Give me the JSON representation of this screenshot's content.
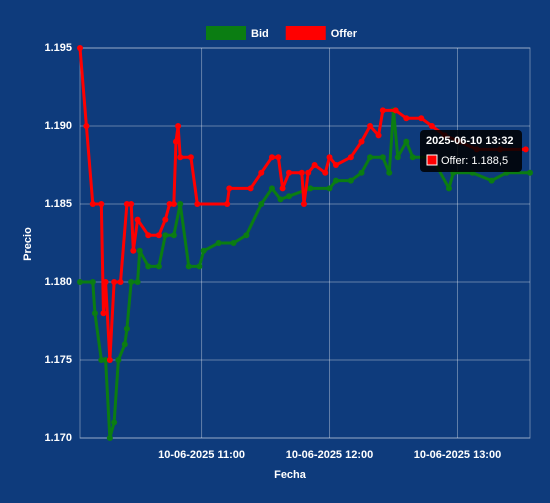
{
  "chart_data": {
    "type": "line",
    "x_label": "Fecha",
    "y_label": "Precio",
    "xlim": [
      "2025-06-10 10:03",
      "2025-06-10 13:34"
    ],
    "xticks": [
      {
        "value": "2025-06-10 11:00",
        "label": "10-06-2025 11:00"
      },
      {
        "value": "2025-06-10 12:00",
        "label": "10-06-2025 12:00"
      },
      {
        "value": "2025-06-10 13:00",
        "label": "10-06-2025 13:00"
      }
    ],
    "ylim": [
      1.17,
      1.195
    ],
    "yticks": [
      {
        "value": 1.17,
        "label": "1.170"
      },
      1.175,
      {
        "value": 1.18,
        "label": "1.180"
      },
      1.185,
      {
        "value": 1.19,
        "label": "1.190"
      },
      1.195
    ],
    "grid": true,
    "legend": "top",
    "series": [
      {
        "name": "Bid",
        "color": "#0b7d12",
        "x": [
          "2025-06-10 10:03",
          "2025-06-10 10:09",
          "2025-06-10 10:10",
          "2025-06-10 10:13",
          "2025-06-10 10:15",
          "2025-06-10 10:17",
          "2025-06-10 10:19",
          "2025-06-10 10:21",
          "2025-06-10 10:24",
          "2025-06-10 10:25",
          "2025-06-10 10:27",
          "2025-06-10 10:30",
          "2025-06-10 10:31",
          "2025-06-10 10:35",
          "2025-06-10 10:40",
          "2025-06-10 10:43",
          "2025-06-10 10:47",
          "2025-06-10 10:50",
          "2025-06-10 10:54",
          "2025-06-10 10:59",
          "2025-06-10 11:01",
          "2025-06-10 11:08",
          "2025-06-10 11:15",
          "2025-06-10 11:21",
          "2025-06-10 11:28",
          "2025-06-10 11:33",
          "2025-06-10 11:37",
          "2025-06-10 11:41",
          "2025-06-10 11:51",
          "2025-06-10 12:00",
          "2025-06-10 12:03",
          "2025-06-10 12:10",
          "2025-06-10 12:15",
          "2025-06-10 12:19",
          "2025-06-10 12:25",
          "2025-06-10 12:28",
          "2025-06-10 12:30",
          "2025-06-10 12:32",
          "2025-06-10 12:36",
          "2025-06-10 12:39",
          "2025-06-10 12:48",
          "2025-06-10 12:56",
          "2025-06-10 12:58",
          "2025-06-10 13:07",
          "2025-06-10 13:16",
          "2025-06-10 13:23",
          "2025-06-10 13:34"
        ],
        "values": [
          1.18,
          1.18,
          1.178,
          1.175,
          1.175,
          1.17,
          1.171,
          1.175,
          1.176,
          1.177,
          1.18,
          1.18,
          1.182,
          1.181,
          1.181,
          1.183,
          1.183,
          1.185,
          1.181,
          1.181,
          1.182,
          1.1825,
          1.1825,
          1.183,
          1.185,
          1.186,
          1.1853,
          1.1855,
          1.186,
          1.186,
          1.1865,
          1.1865,
          1.187,
          1.188,
          1.188,
          1.187,
          1.191,
          1.188,
          1.189,
          1.188,
          1.188,
          1.186,
          1.187,
          1.187,
          1.1865,
          1.187,
          1.187
        ]
      },
      {
        "name": "Offer",
        "color": "#ff0000",
        "x": [
          "2025-06-10 10:03",
          "2025-06-10 10:06",
          "2025-06-10 10:09",
          "2025-06-10 10:13",
          "2025-06-10 10:14",
          "2025-06-10 10:15",
          "2025-06-10 10:17",
          "2025-06-10 10:19",
          "2025-06-10 10:22",
          "2025-06-10 10:25",
          "2025-06-10 10:27",
          "2025-06-10 10:28",
          "2025-06-10 10:30",
          "2025-06-10 10:35",
          "2025-06-10 10:40",
          "2025-06-10 10:43",
          "2025-06-10 10:45",
          "2025-06-10 10:47",
          "2025-06-10 10:48",
          "2025-06-10 10:49",
          "2025-06-10 10:50",
          "2025-06-10 10:55",
          "2025-06-10 10:58",
          "2025-06-10 11:12",
          "2025-06-10 11:13",
          "2025-06-10 11:23",
          "2025-06-10 11:28",
          "2025-06-10 11:33",
          "2025-06-10 11:36",
          "2025-06-10 11:38",
          "2025-06-10 11:41",
          "2025-06-10 11:47",
          "2025-06-10 11:48",
          "2025-06-10 11:50",
          "2025-06-10 11:53",
          "2025-06-10 11:58",
          "2025-06-10 12:00",
          "2025-06-10 12:03",
          "2025-06-10 12:10",
          "2025-06-10 12:15",
          "2025-06-10 12:19",
          "2025-06-10 12:23",
          "2025-06-10 12:25",
          "2025-06-10 12:31",
          "2025-06-10 12:36",
          "2025-06-10 12:43",
          "2025-06-10 12:48",
          "2025-06-10 12:54",
          "2025-06-10 13:01",
          "2025-06-10 13:09",
          "2025-06-10 13:20",
          "2025-06-10 13:32"
        ],
        "values": [
          1.195,
          1.19,
          1.185,
          1.185,
          1.178,
          1.18,
          1.175,
          1.18,
          1.18,
          1.185,
          1.185,
          1.182,
          1.184,
          1.183,
          1.183,
          1.184,
          1.185,
          1.185,
          1.189,
          1.19,
          1.188,
          1.188,
          1.185,
          1.185,
          1.186,
          1.186,
          1.187,
          1.188,
          1.188,
          1.186,
          1.187,
          1.187,
          1.185,
          1.187,
          1.1875,
          1.187,
          1.188,
          1.1875,
          1.188,
          1.189,
          1.19,
          1.1894,
          1.191,
          1.191,
          1.1905,
          1.1905,
          1.19,
          1.1894,
          1.189,
          1.1885,
          1.1885,
          1.1885
        ]
      }
    ],
    "tooltip": {
      "title": "2025-06-10 13:32",
      "label": "Offer: 1.188,5"
    }
  }
}
